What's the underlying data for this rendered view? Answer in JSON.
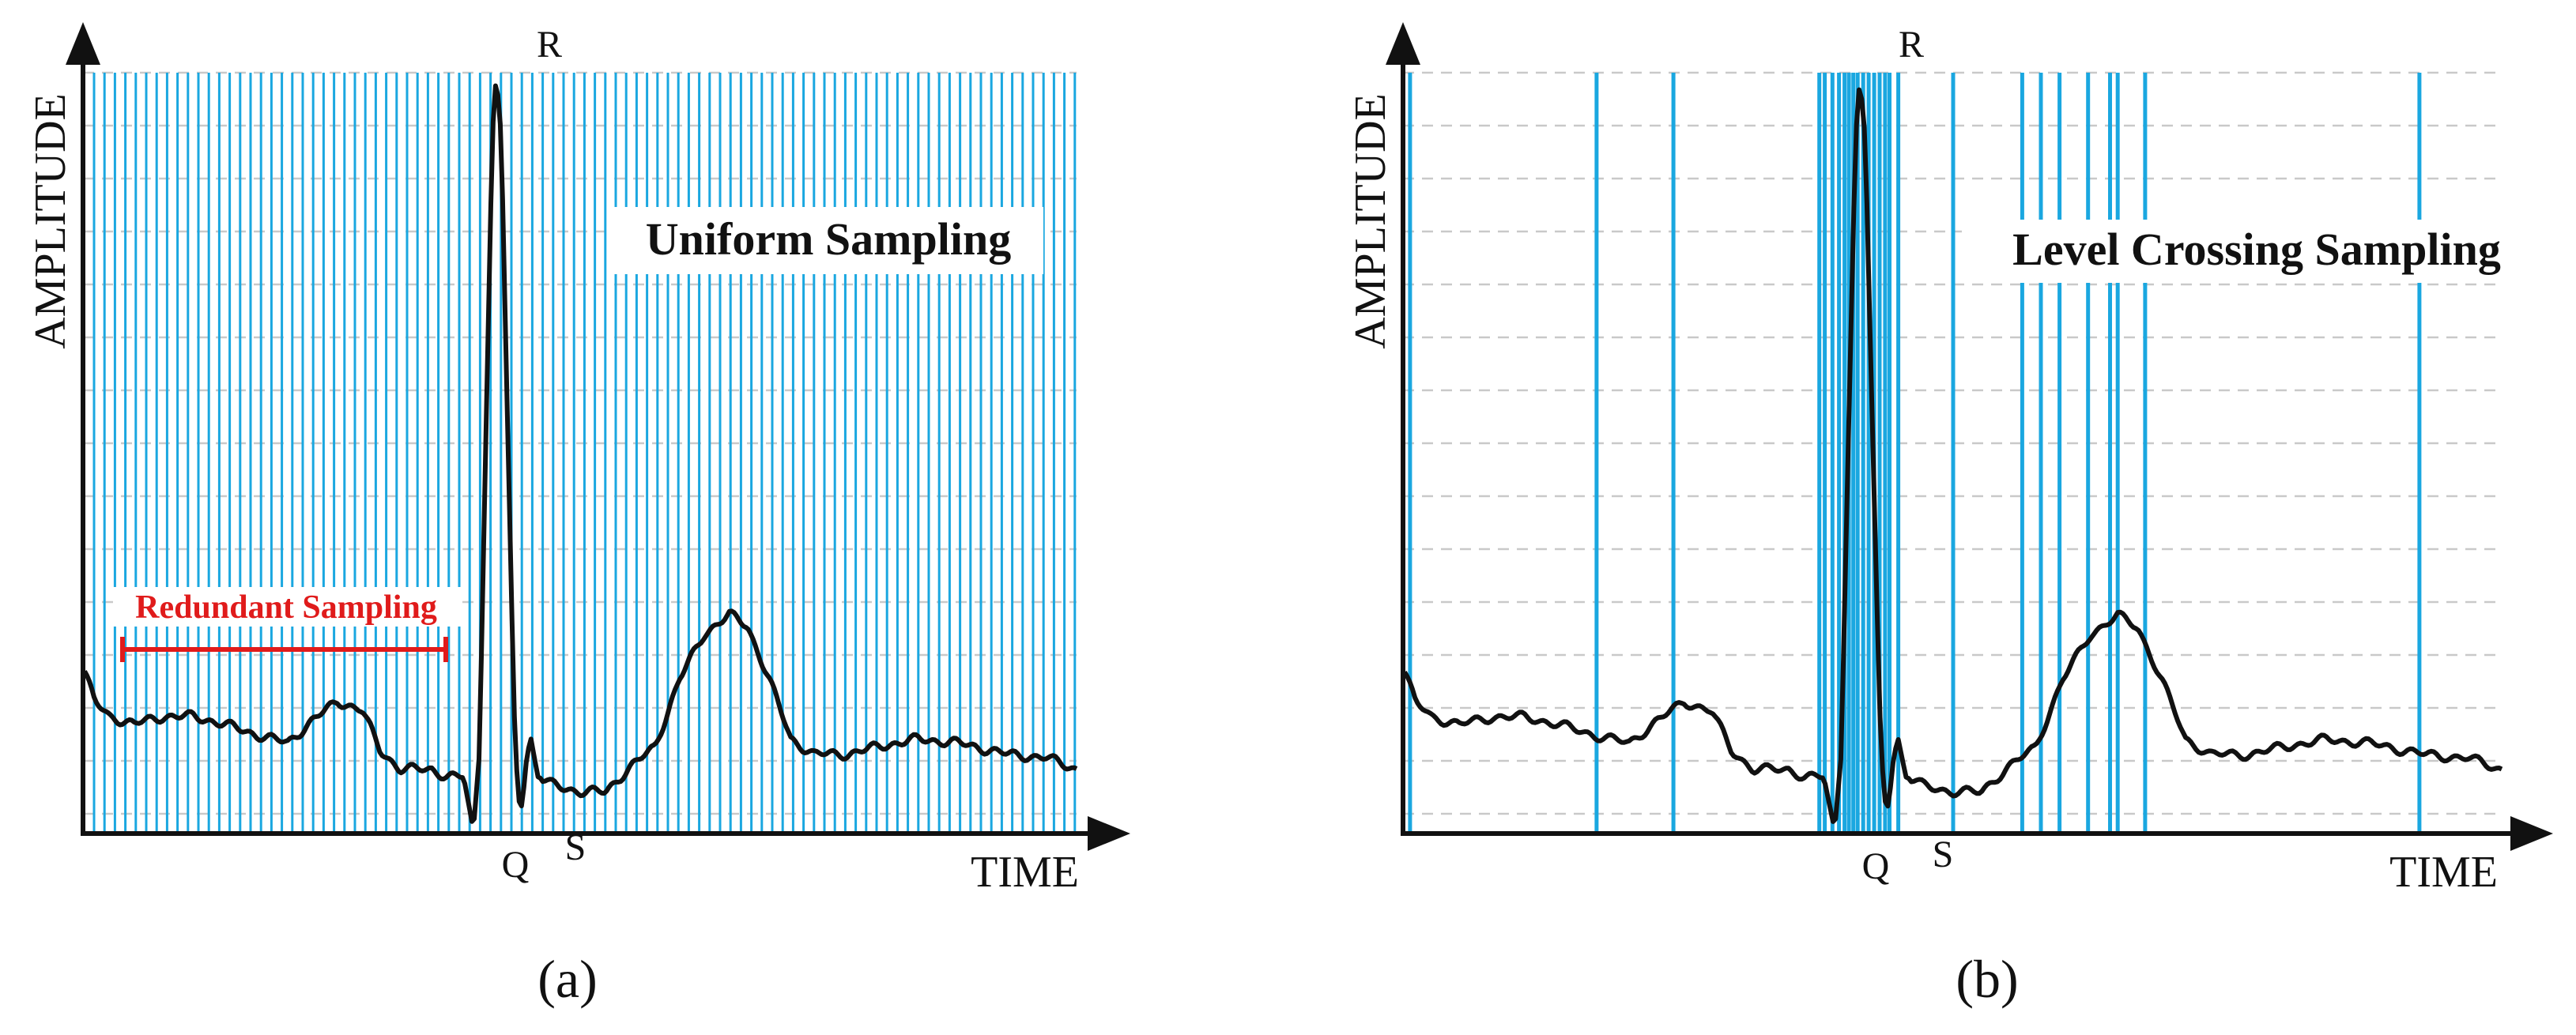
{
  "colors": {
    "sample_line": "#1aa7e0",
    "level_line": "#c9c9c9",
    "signal": "#111111",
    "axis": "#111111",
    "annotation": "#e01b1b"
  },
  "panels": [
    {
      "id": "a",
      "caption": "(a)",
      "title": "Uniform Sampling",
      "x_axis_label": "TIME",
      "y_axis_label": "AMPLITUDE",
      "peak_labels": {
        "q": "Q",
        "r": "R",
        "s": "S"
      },
      "annotation": "Redundant Sampling",
      "sampling": "uniform"
    },
    {
      "id": "b",
      "caption": "(b)",
      "title": "Level Crossing Sampling",
      "x_axis_label": "TIME",
      "y_axis_label": "AMPLITUDE",
      "peak_labels": {
        "q": "Q",
        "r": "R",
        "s": "S"
      },
      "sampling": "level-crossing"
    }
  ]
}
